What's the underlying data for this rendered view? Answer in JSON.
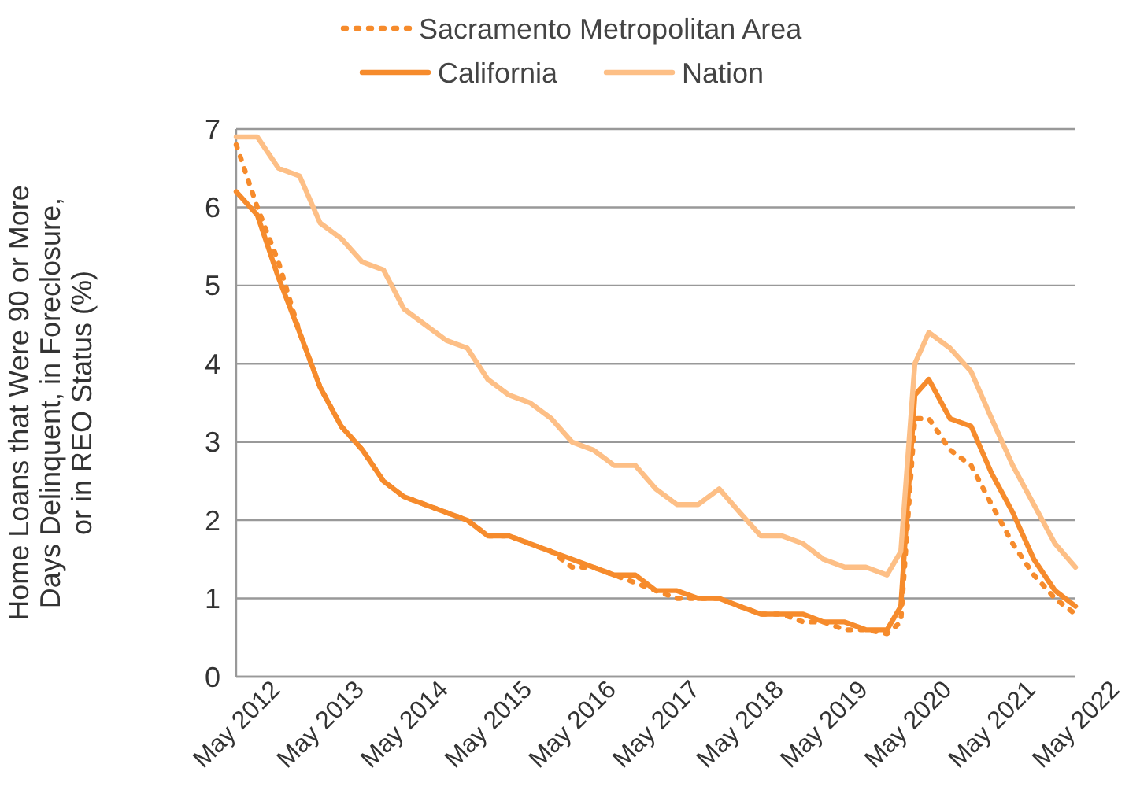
{
  "chart_data": {
    "type": "line",
    "ylabel": "Home Loans that Were 90 or More Days Delinquent, in Foreclosure, or in REO Status (%)",
    "x": [
      "2012-05",
      "2012-08",
      "2012-11",
      "2013-02",
      "2013-05",
      "2013-08",
      "2013-11",
      "2014-02",
      "2014-05",
      "2014-08",
      "2014-11",
      "2015-02",
      "2015-05",
      "2015-08",
      "2015-11",
      "2016-02",
      "2016-05",
      "2016-08",
      "2016-11",
      "2017-02",
      "2017-05",
      "2017-08",
      "2017-11",
      "2018-02",
      "2018-05",
      "2018-08",
      "2018-11",
      "2019-02",
      "2019-05",
      "2019-08",
      "2019-11",
      "2020-02",
      "2020-04",
      "2020-06",
      "2020-08",
      "2020-11",
      "2021-02",
      "2021-05",
      "2021-08",
      "2021-11",
      "2022-02",
      "2022-05"
    ],
    "series": [
      {
        "name": "Sacramento Metropolitan Area",
        "color": "#f68b2c",
        "line_style": "dotted",
        "values": [
          6.8,
          6.0,
          5.3,
          4.4,
          3.7,
          3.2,
          2.9,
          2.5,
          2.3,
          2.2,
          2.1,
          2.0,
          1.8,
          1.8,
          1.7,
          1.6,
          1.4,
          1.4,
          1.3,
          1.2,
          1.1,
          1.0,
          1.0,
          1.0,
          0.9,
          0.8,
          0.8,
          0.7,
          0.7,
          0.6,
          0.6,
          0.55,
          0.7,
          3.3,
          3.3,
          2.9,
          2.7,
          2.2,
          1.7,
          1.3,
          1.0,
          0.8
        ]
      },
      {
        "name": "California",
        "color": "#f68b2c",
        "line_style": "solid",
        "values": [
          6.2,
          5.9,
          5.1,
          4.4,
          3.7,
          3.2,
          2.9,
          2.5,
          2.3,
          2.2,
          2.1,
          2.0,
          1.8,
          1.8,
          1.7,
          1.6,
          1.5,
          1.4,
          1.3,
          1.3,
          1.1,
          1.1,
          1.0,
          1.0,
          0.9,
          0.8,
          0.8,
          0.8,
          0.7,
          0.7,
          0.6,
          0.6,
          0.9,
          3.6,
          3.8,
          3.3,
          3.2,
          2.6,
          2.1,
          1.5,
          1.1,
          0.9
        ]
      },
      {
        "name": "Nation",
        "color": "#fdbf86",
        "line_style": "solid",
        "values": [
          6.9,
          6.9,
          6.5,
          6.4,
          5.8,
          5.6,
          5.3,
          5.2,
          4.7,
          4.5,
          4.3,
          4.2,
          3.8,
          3.6,
          3.5,
          3.3,
          3.0,
          2.9,
          2.7,
          2.7,
          2.4,
          2.2,
          2.2,
          2.4,
          2.1,
          1.8,
          1.8,
          1.7,
          1.5,
          1.4,
          1.4,
          1.3,
          1.6,
          4.0,
          4.4,
          4.2,
          3.9,
          3.3,
          2.7,
          2.2,
          1.7,
          1.4
        ]
      }
    ],
    "xlim": [
      "2012-05",
      "2022-05"
    ],
    "xticks": [
      {
        "value": "2012-05",
        "label": "May 2012"
      },
      {
        "value": "2013-05",
        "label": "May 2013"
      },
      {
        "value": "2014-05",
        "label": "May 2014"
      },
      {
        "value": "2015-05",
        "label": "May 2015"
      },
      {
        "value": "2016-05",
        "label": "May 2016"
      },
      {
        "value": "2017-05",
        "label": "May 2017"
      },
      {
        "value": "2018-05",
        "label": "May 2018"
      },
      {
        "value": "2019-05",
        "label": "May 2019"
      },
      {
        "value": "2020-05",
        "label": "May 2020"
      },
      {
        "value": "2021-05",
        "label": "May 2021"
      },
      {
        "value": "2022-05",
        "label": "May 2022"
      }
    ],
    "ylim": [
      0,
      7
    ],
    "yticks": [
      0,
      1,
      2,
      3,
      4,
      5,
      6,
      7
    ],
    "grid": "y",
    "legend": "top",
    "marker": "none"
  }
}
